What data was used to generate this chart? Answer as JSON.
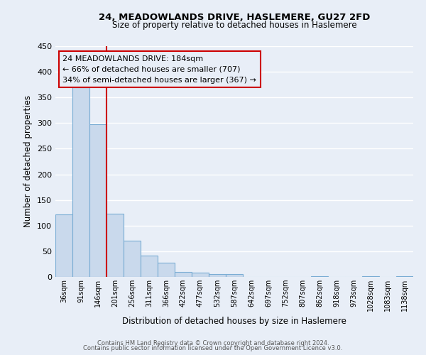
{
  "title": "24, MEADOWLANDS DRIVE, HASLEMERE, GU27 2FD",
  "subtitle": "Size of property relative to detached houses in Haslemere",
  "xlabel": "Distribution of detached houses by size in Haslemere",
  "ylabel": "Number of detached properties",
  "bar_color": "#c9d9ec",
  "bar_edge_color": "#7aadd4",
  "background_color": "#e8eef7",
  "grid_color": "#ffffff",
  "ylim": [
    0,
    450
  ],
  "yticks": [
    0,
    50,
    100,
    150,
    200,
    250,
    300,
    350,
    400,
    450
  ],
  "bin_labels": [
    "36sqm",
    "91sqm",
    "146sqm",
    "201sqm",
    "256sqm",
    "311sqm",
    "366sqm",
    "422sqm",
    "477sqm",
    "532sqm",
    "587sqm",
    "642sqm",
    "697sqm",
    "752sqm",
    "807sqm",
    "862sqm",
    "918sqm",
    "973sqm",
    "1028sqm",
    "1083sqm",
    "1138sqm"
  ],
  "bar_heights": [
    122,
    370,
    298,
    123,
    71,
    42,
    28,
    10,
    9,
    5,
    5,
    0,
    0,
    0,
    0,
    1,
    0,
    0,
    1,
    0,
    1
  ],
  "vline_position": 3,
  "vline_color": "#cc0000",
  "annotation_title": "24 MEADOWLANDS DRIVE: 184sqm",
  "annotation_line1": "← 66% of detached houses are smaller (707)",
  "annotation_line2": "34% of semi-detached houses are larger (367) →",
  "annotation_box_edge_color": "#cc0000",
  "footer_line1": "Contains HM Land Registry data © Crown copyright and database right 2024.",
  "footer_line2": "Contains public sector information licensed under the Open Government Licence v3.0."
}
